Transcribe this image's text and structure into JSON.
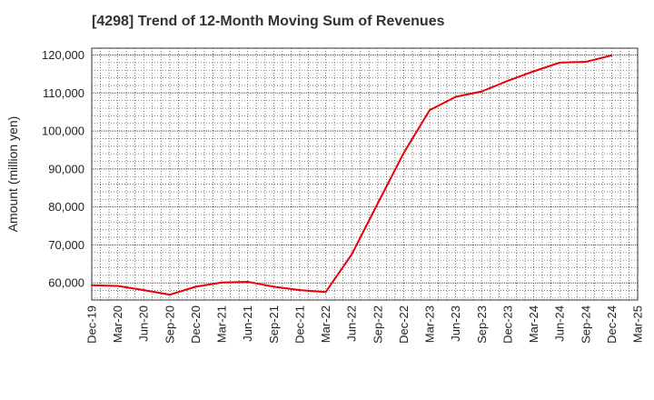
{
  "chart_data": {
    "type": "line",
    "title": "[4298]  Trend of 12-Month Moving Sum of Revenues",
    "xlabel": "",
    "ylabel": "Amount (million yen)",
    "x_ticks": [
      "Dec-19",
      "Mar-20",
      "Jun-20",
      "Sep-20",
      "Dec-20",
      "Mar-21",
      "Jun-21",
      "Sep-21",
      "Dec-21",
      "Mar-22",
      "Jun-22",
      "Sep-22",
      "Dec-22",
      "Mar-23",
      "Jun-23",
      "Sep-23",
      "Dec-23",
      "Mar-24",
      "Jun-24",
      "Sep-24",
      "Dec-24",
      "Mar-25"
    ],
    "y_ticks": [
      "60,000",
      "70,000",
      "80,000",
      "90,000",
      "100,000",
      "110,000",
      "120,000"
    ],
    "ylim": [
      55500,
      121800
    ],
    "grid": true,
    "series": [
      {
        "color": "#e8000b",
        "x": [
          "Dec-19",
          "Mar-20",
          "Jun-20",
          "Sep-20",
          "Dec-20",
          "Mar-21",
          "Jun-21",
          "Sep-21",
          "Dec-21",
          "Mar-22",
          "Jun-22",
          "Sep-22",
          "Dec-22",
          "Mar-23",
          "Jun-23",
          "Sep-23",
          "Dec-23",
          "Mar-24",
          "Jun-24",
          "Sep-24",
          "Dec-24"
        ],
        "values": [
          59400,
          59200,
          58100,
          56900,
          59000,
          60100,
          60300,
          59000,
          58100,
          57600,
          67500,
          80900,
          94200,
          105500,
          109000,
          110400,
          113200,
          115700,
          118000,
          118200,
          119900
        ]
      }
    ]
  }
}
